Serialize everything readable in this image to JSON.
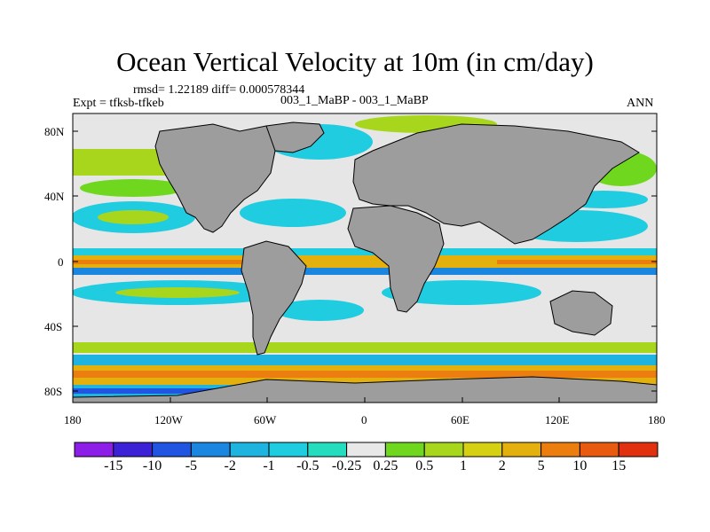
{
  "title": "Ocean Vertical Velocity at 10m (in cm/day)",
  "stats": "rmsd= 1.22189 diff= 0.000578344",
  "expt": "Expt = tfksb-tfkeb",
  "case": "003_1_MaBP - 003_1_MaBP",
  "season": "ANN",
  "lat_labels": [
    "80N",
    "40N",
    "0",
    "40S",
    "80S"
  ],
  "lon_labels": [
    "180",
    "120W",
    "60W",
    "0",
    "60E",
    "120E",
    "180"
  ],
  "colorbar": {
    "labels": [
      "-15",
      "-10",
      "-5",
      "-2",
      "-1",
      "-0.5",
      "-0.25",
      "0.25",
      "0.5",
      "1",
      "2",
      "5",
      "10",
      "15"
    ],
    "colors": [
      "#8c1ee8",
      "#3b22d6",
      "#1f55e0",
      "#1a86e0",
      "#1fb3e0",
      "#20cce0",
      "#24ddbf",
      "#e8e8e8",
      "#6fd81e",
      "#a8d61c",
      "#d6d012",
      "#e4b00e",
      "#ec7e10",
      "#e85a10",
      "#e03010"
    ]
  },
  "colors": {
    "land": "#9d9d9d",
    "ocean_bg": "#e6e6e6"
  }
}
